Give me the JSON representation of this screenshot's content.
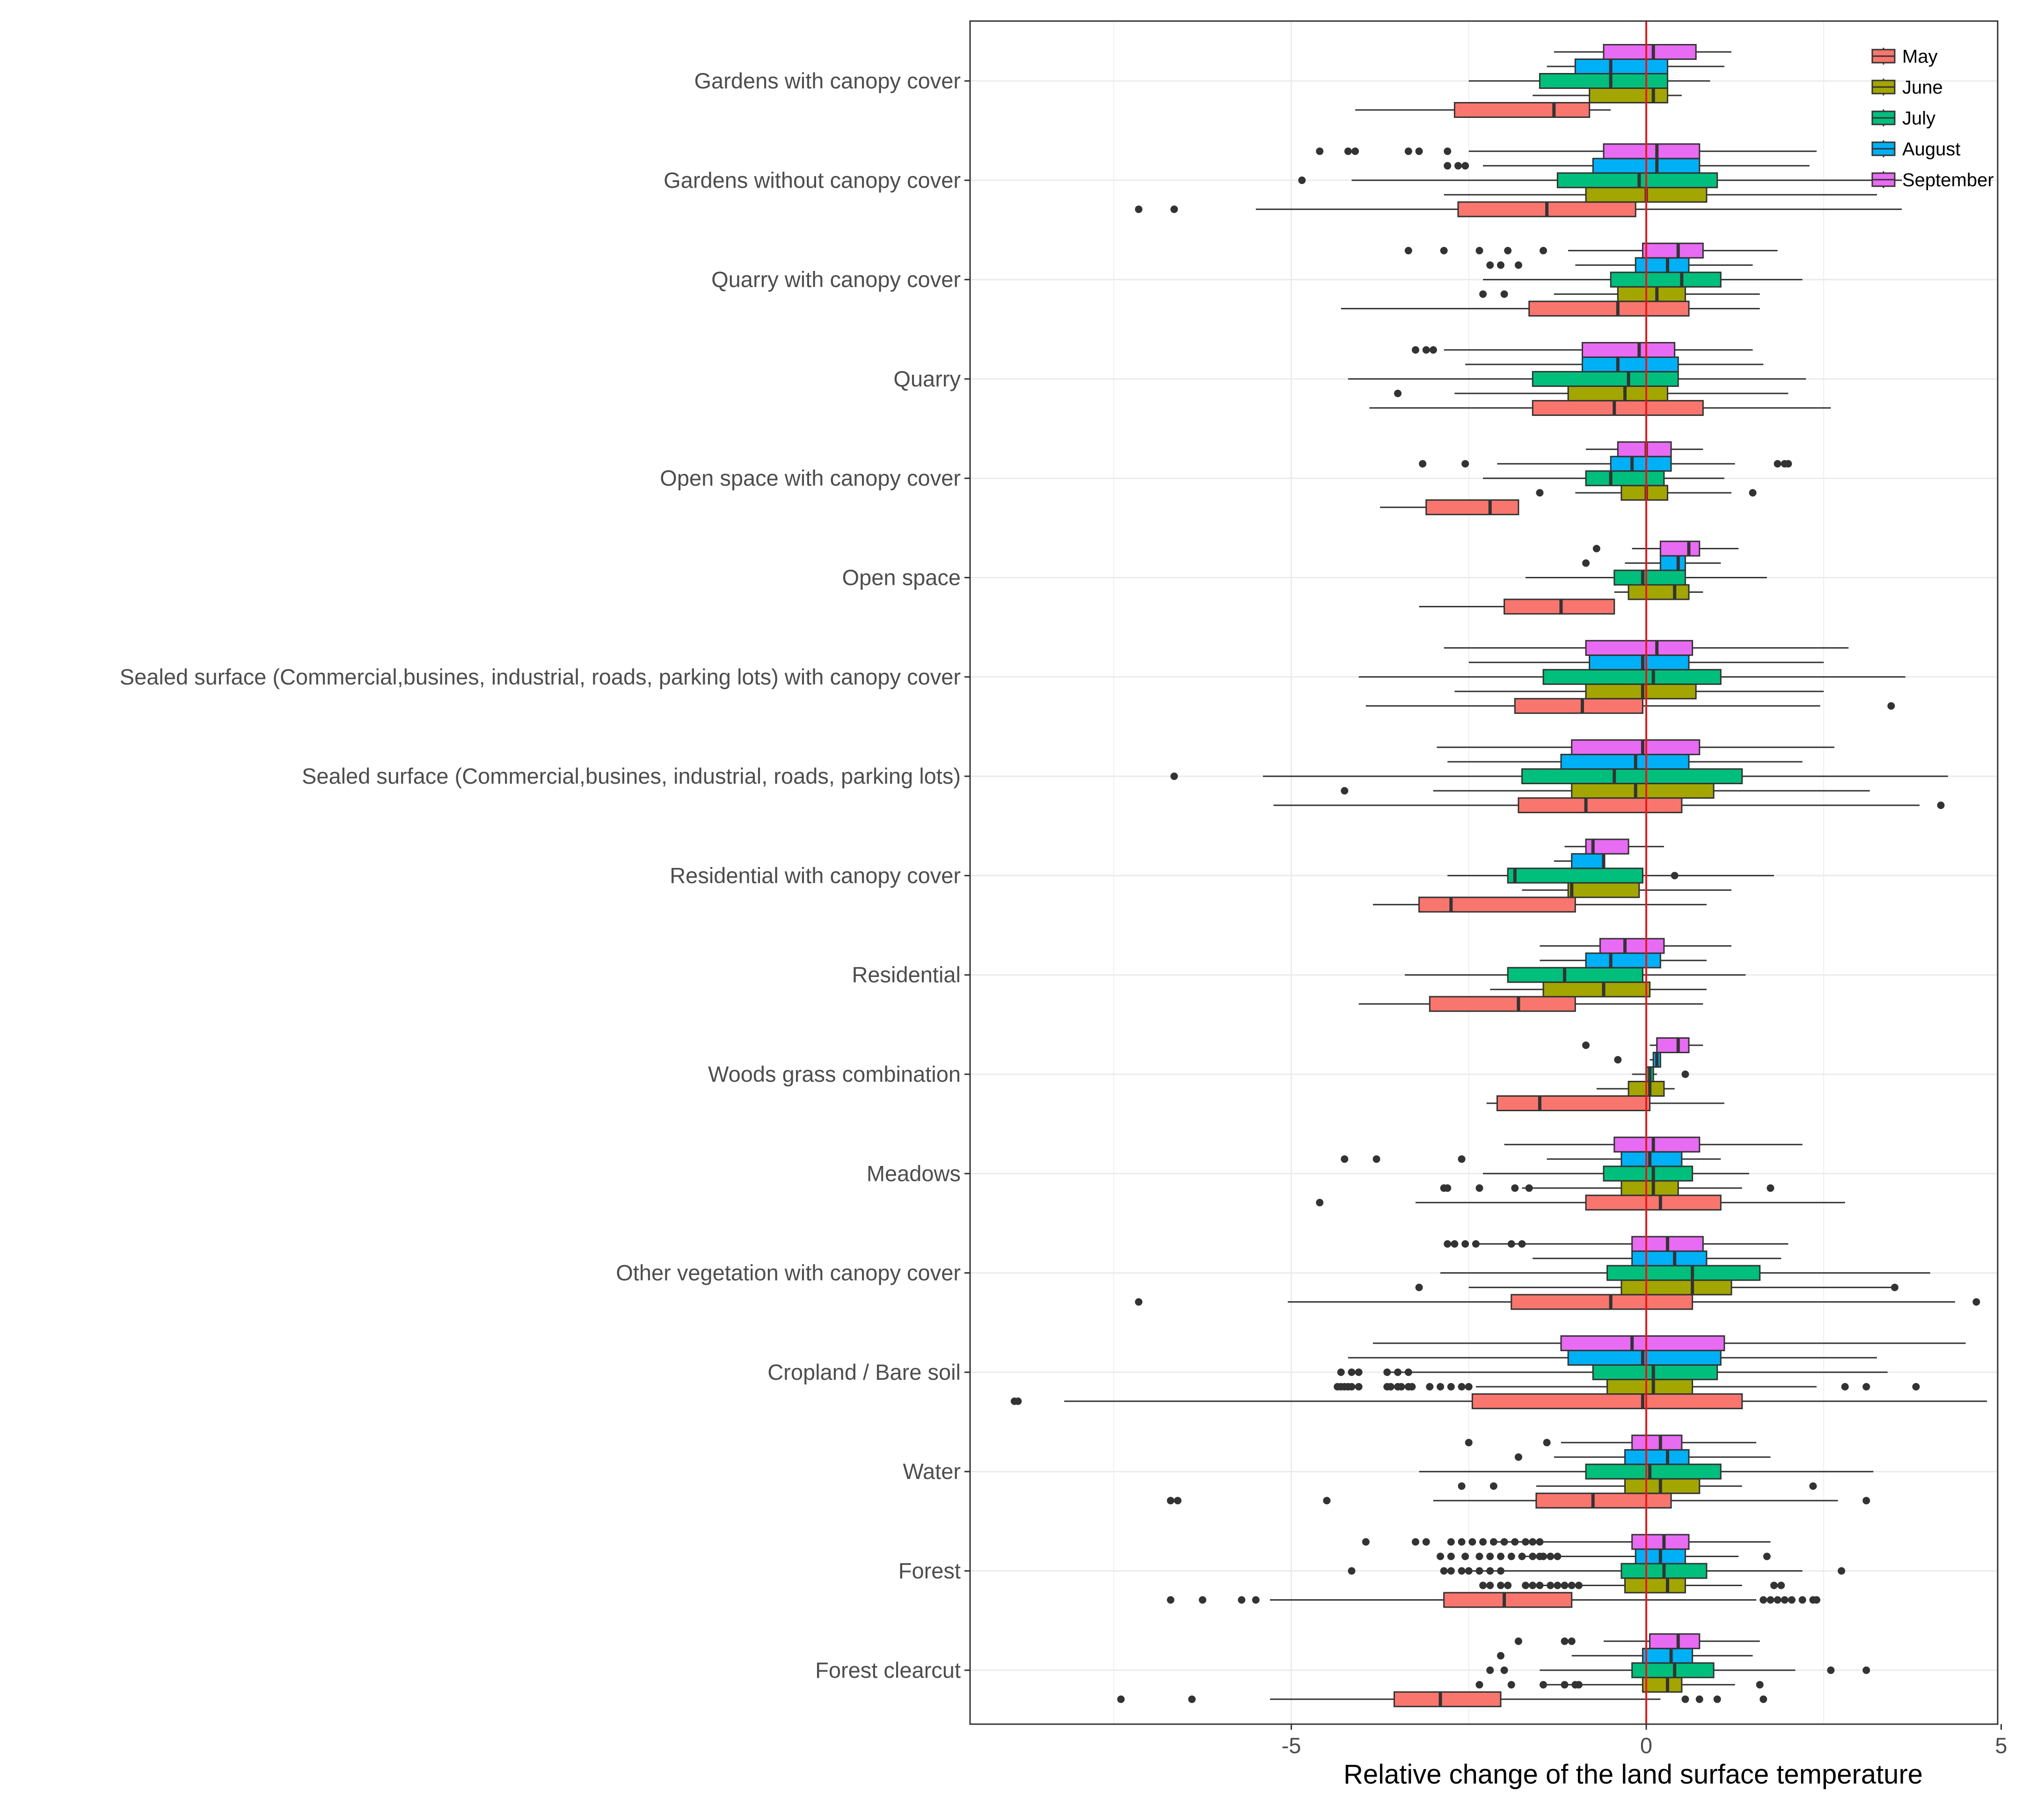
{
  "chart_data": {
    "type": "boxplot",
    "orientation": "horizontal",
    "title": "",
    "xlabel": "Relative change of the land surface temperature",
    "ylabel": "",
    "xlim": [
      -9.2,
      5.3
    ],
    "xticks": [
      -5,
      0,
      5
    ],
    "xtick_labels": [
      "-5",
      "0",
      "5"
    ],
    "reference_line": {
      "x": 0,
      "color": "#e31a1c"
    },
    "grid": true,
    "legend_position": "top-right",
    "series": [
      {
        "name": "May",
        "color": "#F8766D"
      },
      {
        "name": "June",
        "color": "#A3A500"
      },
      {
        "name": "July",
        "color": "#00BF7D"
      },
      {
        "name": "August",
        "color": "#00B0F6"
      },
      {
        "name": "September",
        "color": "#E76BF3"
      }
    ],
    "categories": [
      "Gardens with canopy cover",
      "Gardens without canopy cover",
      "Quarry with canopy cover",
      "Quarry",
      "Open space with canopy cover",
      "Open space",
      "Sealed surface (Commercial,busines, industrial, roads, parking lots) with canopy cover",
      "Sealed surface (Commercial,busines, industrial, roads, parking lots)",
      "Residential with canopy cover",
      "Residential",
      "Woods grass combination",
      "Meadows",
      "Other vegetation with canopy cover",
      "Cropland / Bare soil",
      "Water",
      "Forest",
      "Forest clearcut"
    ],
    "boxes": [
      [
        [
          -4.1,
          -2.7,
          -1.3,
          -0.8,
          -0.5,
          []
        ],
        [
          -1.6,
          -0.8,
          0.1,
          0.3,
          0.5,
          []
        ],
        [
          -2.5,
          -1.5,
          -0.5,
          0.3,
          0.9,
          []
        ],
        [
          -1.4,
          -1.0,
          -0.5,
          0.3,
          1.1,
          []
        ],
        [
          -1.3,
          -0.6,
          0.1,
          0.7,
          1.2,
          []
        ]
      ],
      [
        [
          -5.5,
          -2.65,
          -1.4,
          -0.15,
          3.6,
          [
            -7.15,
            -6.65
          ]
        ],
        [
          -2.85,
          -0.85,
          0.0,
          0.85,
          3.25,
          []
        ],
        [
          -4.15,
          -1.25,
          -0.1,
          1.0,
          3.6,
          [
            -4.85
          ]
        ],
        [
          -2.3,
          -0.75,
          0.15,
          0.75,
          2.3,
          [
            -2.8,
            -2.65,
            -2.55
          ]
        ],
        [
          -2.5,
          -0.6,
          0.15,
          0.75,
          2.4,
          [
            -4.6,
            -4.2,
            -4.1,
            -3.35,
            -3.2,
            -2.8
          ]
        ]
      ],
      [
        [
          -4.3,
          -1.65,
          -0.4,
          0.6,
          1.6,
          []
        ],
        [
          -1.3,
          -0.4,
          0.15,
          0.55,
          1.6,
          [
            -2.3,
            -2.0
          ]
        ],
        [
          -2.3,
          -0.5,
          0.5,
          1.05,
          2.2,
          []
        ],
        [
          -1.0,
          -0.15,
          0.3,
          0.6,
          1.5,
          [
            -2.2,
            -2.05,
            -1.8
          ]
        ],
        [
          -1.1,
          -0.05,
          0.45,
          0.8,
          1.85,
          [
            -3.35,
            -2.85,
            -2.35,
            -1.95,
            -1.45
          ]
        ]
      ],
      [
        [
          -3.9,
          -1.6,
          -0.45,
          0.8,
          2.6,
          []
        ],
        [
          -2.7,
          -1.1,
          -0.3,
          0.3,
          2.0,
          [
            -3.5
          ]
        ],
        [
          -4.2,
          -1.6,
          -0.25,
          0.45,
          2.25,
          []
        ],
        [
          -2.55,
          -0.9,
          -0.4,
          0.45,
          1.65,
          []
        ],
        [
          -2.85,
          -0.9,
          -0.1,
          0.4,
          1.5,
          [
            -3.25,
            -3.1,
            -3.0
          ]
        ]
      ],
      [
        [
          -3.75,
          -3.1,
          -2.2,
          -1.8,
          -1.8,
          []
        ],
        [
          -1.0,
          -0.35,
          0.0,
          0.3,
          1.2,
          [
            -1.5,
            1.5
          ]
        ],
        [
          -2.3,
          -0.85,
          -0.5,
          0.25,
          1.1,
          []
        ],
        [
          -2.1,
          -0.5,
          -0.2,
          0.35,
          1.25,
          [
            -3.15,
            -2.55,
            1.85,
            1.95,
            2.0
          ]
        ],
        [
          -0.85,
          -0.4,
          0.0,
          0.35,
          0.8,
          []
        ]
      ],
      [
        [
          -3.2,
          -2.0,
          -1.2,
          -0.45,
          -0.45,
          []
        ],
        [
          -0.45,
          -0.25,
          0.4,
          0.6,
          0.8,
          []
        ],
        [
          -1.7,
          -0.45,
          -0.05,
          0.55,
          1.7,
          []
        ],
        [
          -0.3,
          0.2,
          0.45,
          0.55,
          1.05,
          [
            -0.85
          ]
        ],
        [
          -0.2,
          0.2,
          0.6,
          0.75,
          1.3,
          [
            -0.7
          ]
        ]
      ],
      [
        [
          -3.95,
          -1.85,
          -0.9,
          -0.05,
          2.45,
          [
            3.45
          ]
        ],
        [
          -2.7,
          -0.85,
          -0.05,
          0.7,
          2.5,
          []
        ],
        [
          -4.05,
          -1.45,
          0.1,
          1.05,
          3.65,
          []
        ],
        [
          -2.5,
          -0.8,
          -0.05,
          0.6,
          2.5,
          []
        ],
        [
          -2.85,
          -0.85,
          0.15,
          0.65,
          2.85,
          []
        ]
      ],
      [
        [
          -5.25,
          -1.8,
          -0.85,
          0.5,
          3.85,
          [
            4.15
          ]
        ],
        [
          -3.0,
          -1.05,
          -0.15,
          0.95,
          3.15,
          [
            -4.25
          ]
        ],
        [
          -5.4,
          -1.75,
          -0.45,
          1.35,
          4.25,
          [
            -6.65
          ]
        ],
        [
          -2.8,
          -1.2,
          -0.15,
          0.6,
          2.2,
          []
        ],
        [
          -2.95,
          -1.05,
          -0.05,
          0.75,
          2.65,
          []
        ]
      ],
      [
        [
          -3.85,
          -3.2,
          -2.75,
          -1.0,
          0.85,
          []
        ],
        [
          -1.75,
          -1.1,
          -1.05,
          -0.1,
          1.2,
          []
        ],
        [
          -2.8,
          -1.95,
          -1.85,
          -0.05,
          1.8,
          [
            0.4
          ]
        ],
        [
          -1.3,
          -1.05,
          -0.6,
          -0.6,
          -0.6,
          []
        ],
        [
          -1.15,
          -0.85,
          -0.75,
          -0.25,
          0.25,
          []
        ]
      ],
      [
        [
          -4.05,
          -3.05,
          -1.8,
          -1.0,
          0.8,
          []
        ],
        [
          -2.2,
          -1.45,
          -0.6,
          0.05,
          0.85,
          []
        ],
        [
          -3.4,
          -1.95,
          -1.15,
          -0.05,
          1.4,
          []
        ],
        [
          -1.5,
          -0.85,
          -0.5,
          0.2,
          0.85,
          []
        ],
        [
          -1.5,
          -0.65,
          -0.3,
          0.25,
          1.2,
          []
        ]
      ],
      [
        [
          -2.25,
          -2.1,
          -1.5,
          0.05,
          1.1,
          []
        ],
        [
          -0.7,
          -0.25,
          0.05,
          0.25,
          0.4,
          []
        ],
        [
          -0.2,
          0.0,
          0.05,
          0.1,
          0.15,
          [
            0.55
          ]
        ],
        [
          0.05,
          0.1,
          0.15,
          0.2,
          0.2,
          [
            -0.4
          ]
        ],
        [
          0.05,
          0.15,
          0.45,
          0.6,
          0.8,
          [
            -0.85
          ]
        ]
      ],
      [
        [
          -3.25,
          -0.85,
          0.2,
          1.05,
          2.8,
          [
            -4.6
          ]
        ],
        [
          -1.75,
          -0.35,
          0.1,
          0.45,
          1.35,
          [
            -2.85,
            -2.8,
            -2.35,
            -1.85,
            -1.65,
            1.75
          ]
        ],
        [
          -2.3,
          -0.6,
          0.1,
          0.65,
          1.45,
          []
        ],
        [
          -1.4,
          -0.35,
          0.05,
          0.5,
          1.05,
          [
            -4.25,
            -3.8,
            -2.6
          ]
        ],
        [
          -2.0,
          -0.45,
          0.1,
          0.75,
          2.2,
          []
        ]
      ],
      [
        [
          -5.05,
          -1.9,
          -0.5,
          0.65,
          4.35,
          [
            -7.15,
            4.65
          ]
        ],
        [
          -2.5,
          -0.35,
          0.65,
          1.2,
          3.45,
          [
            -3.2,
            3.5
          ]
        ],
        [
          -2.9,
          -0.55,
          0.65,
          1.6,
          4.0,
          []
        ],
        [
          -1.6,
          -0.2,
          0.4,
          0.85,
          1.9,
          []
        ],
        [
          -2.35,
          -0.2,
          0.3,
          0.8,
          2.0,
          [
            -2.8,
            -2.7,
            -2.55,
            -2.4,
            -1.9,
            -1.75
          ]
        ]
      ],
      [
        [
          -8.2,
          -2.45,
          -0.05,
          1.35,
          4.8,
          [
            -8.9,
            -8.85
          ]
        ],
        [
          -2.4,
          -0.55,
          0.1,
          0.65,
          2.4,
          [
            -4.35,
            -4.25,
            -4.15,
            -4.05,
            -3.65,
            -3.5,
            -3.3,
            -3.05,
            -2.9,
            -2.75,
            -2.6,
            -2.5,
            -4.3,
            -4.2,
            -3.6,
            -3.45,
            -3.35,
            2.8,
            3.1,
            3.8
          ]
        ],
        [
          -3.6,
          -0.75,
          0.1,
          1.0,
          3.4,
          [
            -4.3,
            -4.15,
            -4.05,
            -3.65,
            -3.5,
            -3.35
          ]
        ],
        [
          -4.2,
          -1.1,
          -0.05,
          1.05,
          3.25,
          []
        ],
        [
          -3.85,
          -1.2,
          -0.2,
          1.1,
          4.5,
          []
        ]
      ],
      [
        [
          -3.0,
          -1.55,
          -0.75,
          0.35,
          2.7,
          [
            -6.7,
            -6.6,
            -4.5,
            3.1
          ]
        ],
        [
          -1.55,
          -0.3,
          0.2,
          0.75,
          1.35,
          [
            -2.6,
            -2.15,
            2.35
          ]
        ],
        [
          -3.2,
          -0.85,
          0.05,
          1.05,
          3.2,
          []
        ],
        [
          -1.3,
          -0.3,
          0.3,
          0.6,
          1.75,
          [
            -1.8
          ]
        ],
        [
          -1.2,
          -0.2,
          0.2,
          0.5,
          1.55,
          [
            -2.5,
            -1.4
          ]
        ]
      ],
      [
        [
          -5.3,
          -2.85,
          -2.0,
          -1.05,
          1.55,
          [
            -6.7,
            -6.25,
            -5.7,
            -5.5,
            1.65,
            1.75,
            1.85,
            1.95,
            2.05,
            2.2,
            2.35,
            2.4
          ]
        ],
        [
          -1.75,
          -0.3,
          0.3,
          0.55,
          1.35,
          [
            -1.7,
            -1.6,
            -1.5,
            -1.35,
            -1.25,
            -1.15,
            -1.05,
            -0.95,
            -2.3,
            -2.2,
            -2.05,
            -1.95,
            1.8,
            1.9
          ]
        ],
        [
          -2.55,
          -0.35,
          0.25,
          0.85,
          2.2,
          [
            -4.15,
            -2.85,
            -2.75,
            -2.6,
            -2.5,
            -2.35,
            -2.2,
            -2.05,
            2.75
          ]
        ],
        [
          -1.8,
          -0.15,
          0.2,
          0.55,
          1.3,
          [
            -2.9,
            -2.75,
            -2.55,
            -2.35,
            -2.2,
            -2.05,
            -1.9,
            -1.75,
            -1.6,
            -1.5,
            -1.45,
            -1.35,
            -1.25,
            1.7
          ]
        ],
        [
          -2.2,
          -0.2,
          0.25,
          0.6,
          1.75,
          [
            -3.95,
            -3.25,
            -3.1,
            -2.75,
            -2.6,
            -2.45,
            -2.3,
            -2.15,
            -2.0,
            -1.85,
            -1.7,
            -1.6,
            -1.5
          ]
        ]
      ],
      [
        [
          -5.3,
          -3.55,
          -2.9,
          -2.05,
          0.2,
          [
            -7.4,
            -6.4,
            0.55,
            0.75,
            1.0,
            1.65
          ]
        ],
        [
          -1.4,
          -0.05,
          0.3,
          0.5,
          1.25,
          [
            -2.35,
            -1.9,
            -1.45,
            -1.15,
            -1.0,
            -0.95,
            1.6
          ]
        ],
        [
          -1.5,
          -0.2,
          0.4,
          0.95,
          2.1,
          [
            -2.2,
            -2.0,
            2.6,
            3.1
          ]
        ],
        [
          -1.05,
          -0.05,
          0.35,
          0.65,
          1.5,
          [
            -2.05
          ]
        ],
        [
          -0.6,
          0.05,
          0.45,
          0.75,
          1.6,
          [
            -1.8,
            -1.15,
            -1.05
          ]
        ]
      ]
    ]
  }
}
